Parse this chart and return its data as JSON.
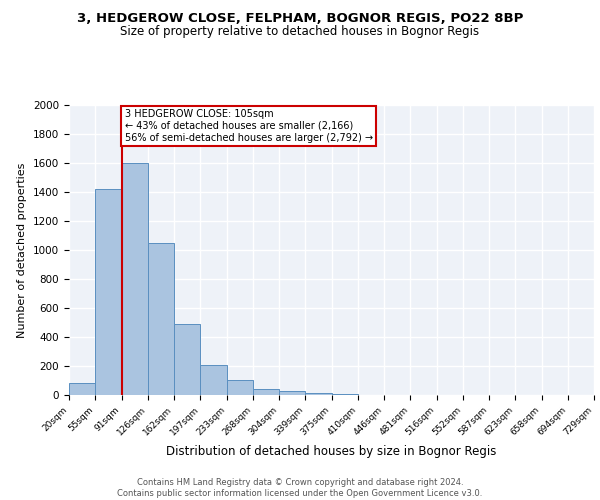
{
  "title1": "3, HEDGEROW CLOSE, FELPHAM, BOGNOR REGIS, PO22 8BP",
  "title2": "Size of property relative to detached houses in Bognor Regis",
  "xlabel": "Distribution of detached houses by size in Bognor Regis",
  "ylabel": "Number of detached properties",
  "bin_labels": [
    "20sqm",
    "55sqm",
    "91sqm",
    "126sqm",
    "162sqm",
    "197sqm",
    "233sqm",
    "268sqm",
    "304sqm",
    "339sqm",
    "375sqm",
    "410sqm",
    "446sqm",
    "481sqm",
    "516sqm",
    "552sqm",
    "587sqm",
    "623sqm",
    "658sqm",
    "694sqm",
    "729sqm"
  ],
  "bar_values": [
    80,
    1420,
    1600,
    1050,
    490,
    205,
    105,
    40,
    25,
    15,
    10,
    0,
    0,
    0,
    0,
    0,
    0,
    0,
    0,
    0
  ],
  "bar_color": "#aac4e0",
  "bar_edge_color": "#5a8fc0",
  "bg_color": "#eef2f8",
  "grid_color": "#ffffff",
  "red_line_x": 2,
  "annotation_text": "3 HEDGEROW CLOSE: 105sqm\n← 43% of detached houses are smaller (2,166)\n56% of semi-detached houses are larger (2,792) →",
  "annotation_box_color": "#ffffff",
  "annotation_box_edge_color": "#cc0000",
  "red_line_color": "#cc0000",
  "footer_text": "Contains HM Land Registry data © Crown copyright and database right 2024.\nContains public sector information licensed under the Open Government Licence v3.0.",
  "ylim": [
    0,
    2000
  ],
  "yticks": [
    0,
    200,
    400,
    600,
    800,
    1000,
    1200,
    1400,
    1600,
    1800,
    2000
  ]
}
